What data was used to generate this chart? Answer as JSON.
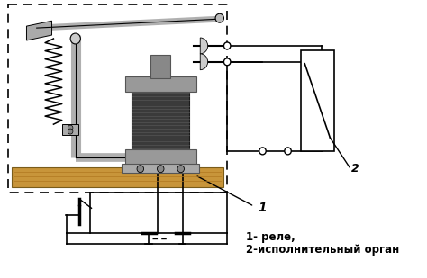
{
  "background_color": "#ffffff",
  "line_color": "#000000",
  "fig_width": 4.74,
  "fig_height": 3.09,
  "dpi": 100,
  "label_1": "1- реле,",
  "label_2": "2-исполнительный орган",
  "label_font_size": 8.5
}
